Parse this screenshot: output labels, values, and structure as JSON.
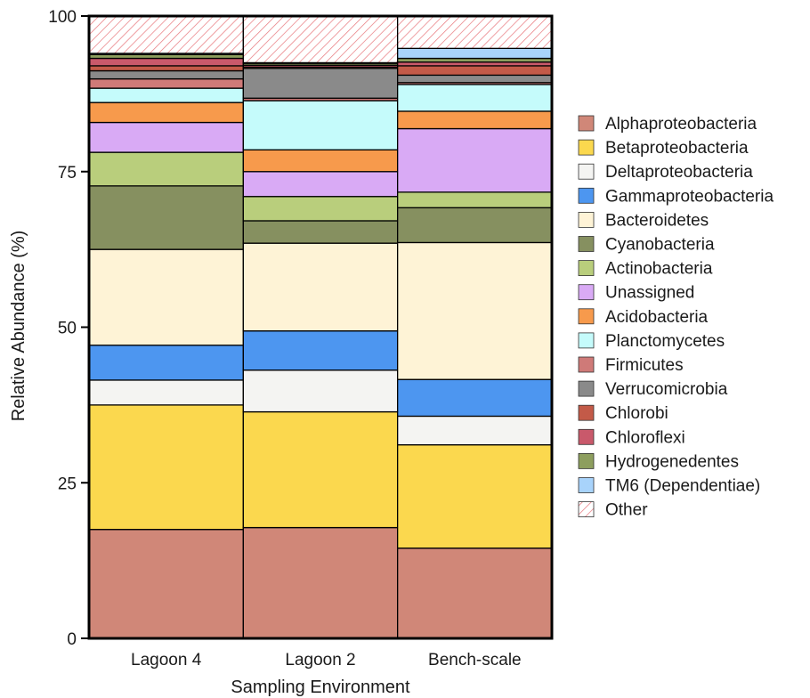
{
  "chart_data": {
    "type": "bar",
    "stacked": true,
    "title": "",
    "xlabel": "Sampling Environment",
    "ylabel": "Relative Abundance (%)",
    "ylim": [
      0,
      100
    ],
    "yticks": [
      0,
      25,
      50,
      75,
      100
    ],
    "categories": [
      "Lagoon 4",
      "Lagoon 2",
      "Bench-scale"
    ],
    "legend_position": "right",
    "series": [
      {
        "name": "Alphaproteobacteria",
        "color": "#d08778",
        "values": [
          17.5,
          17.8,
          14.5
        ]
      },
      {
        "name": "Betaproteobacteria",
        "color": "#fbd84e",
        "values": [
          20.0,
          18.6,
          16.6
        ]
      },
      {
        "name": "Deltaproteobacteria",
        "color": "#f4f4f2",
        "values": [
          4.0,
          6.7,
          4.6
        ]
      },
      {
        "name": "Gammaproteobacteria",
        "color": "#4d96f0",
        "values": [
          5.6,
          6.3,
          5.9
        ]
      },
      {
        "name": "Bacteroidetes",
        "color": "#fef3d6",
        "values": [
          15.4,
          14.1,
          22.0
        ]
      },
      {
        "name": "Cyanobacteria",
        "color": "#869060",
        "values": [
          10.2,
          3.6,
          5.6
        ]
      },
      {
        "name": "Actinobacteria",
        "color": "#b9ce7c",
        "values": [
          5.4,
          3.9,
          2.5
        ]
      },
      {
        "name": "Unassigned",
        "color": "#d9aaf5",
        "values": [
          4.8,
          4.0,
          10.2
        ]
      },
      {
        "name": "Acidobacteria",
        "color": "#f79a4c",
        "values": [
          3.2,
          3.5,
          2.8
        ]
      },
      {
        "name": "Planctomycetes",
        "color": "#c5fbfb",
        "values": [
          2.3,
          7.9,
          4.3
        ]
      },
      {
        "name": "Firmicutes",
        "color": "#cf7a78",
        "values": [
          1.5,
          0.4,
          0.3
        ]
      },
      {
        "name": "Verrucomicrobia",
        "color": "#8a8a8a",
        "values": [
          1.3,
          4.8,
          1.2
        ]
      },
      {
        "name": "Chlorobi",
        "color": "#c35a48",
        "values": [
          0.8,
          0.2,
          1.5
        ]
      },
      {
        "name": "Chloroflexi",
        "color": "#c9596b",
        "values": [
          1.2,
          0.3,
          0.6
        ]
      },
      {
        "name": "Hydrogenedentes",
        "color": "#8d9e5e",
        "values": [
          0.6,
          0.3,
          0.6
        ]
      },
      {
        "name": "TM6 (Dependentiae)",
        "color": "#a8d3fb",
        "values": [
          0.2,
          0.1,
          1.6
        ]
      },
      {
        "name": "Other",
        "color": "hatch",
        "values": [
          5.2,
          6.5,
          4.6
        ]
      }
    ]
  }
}
